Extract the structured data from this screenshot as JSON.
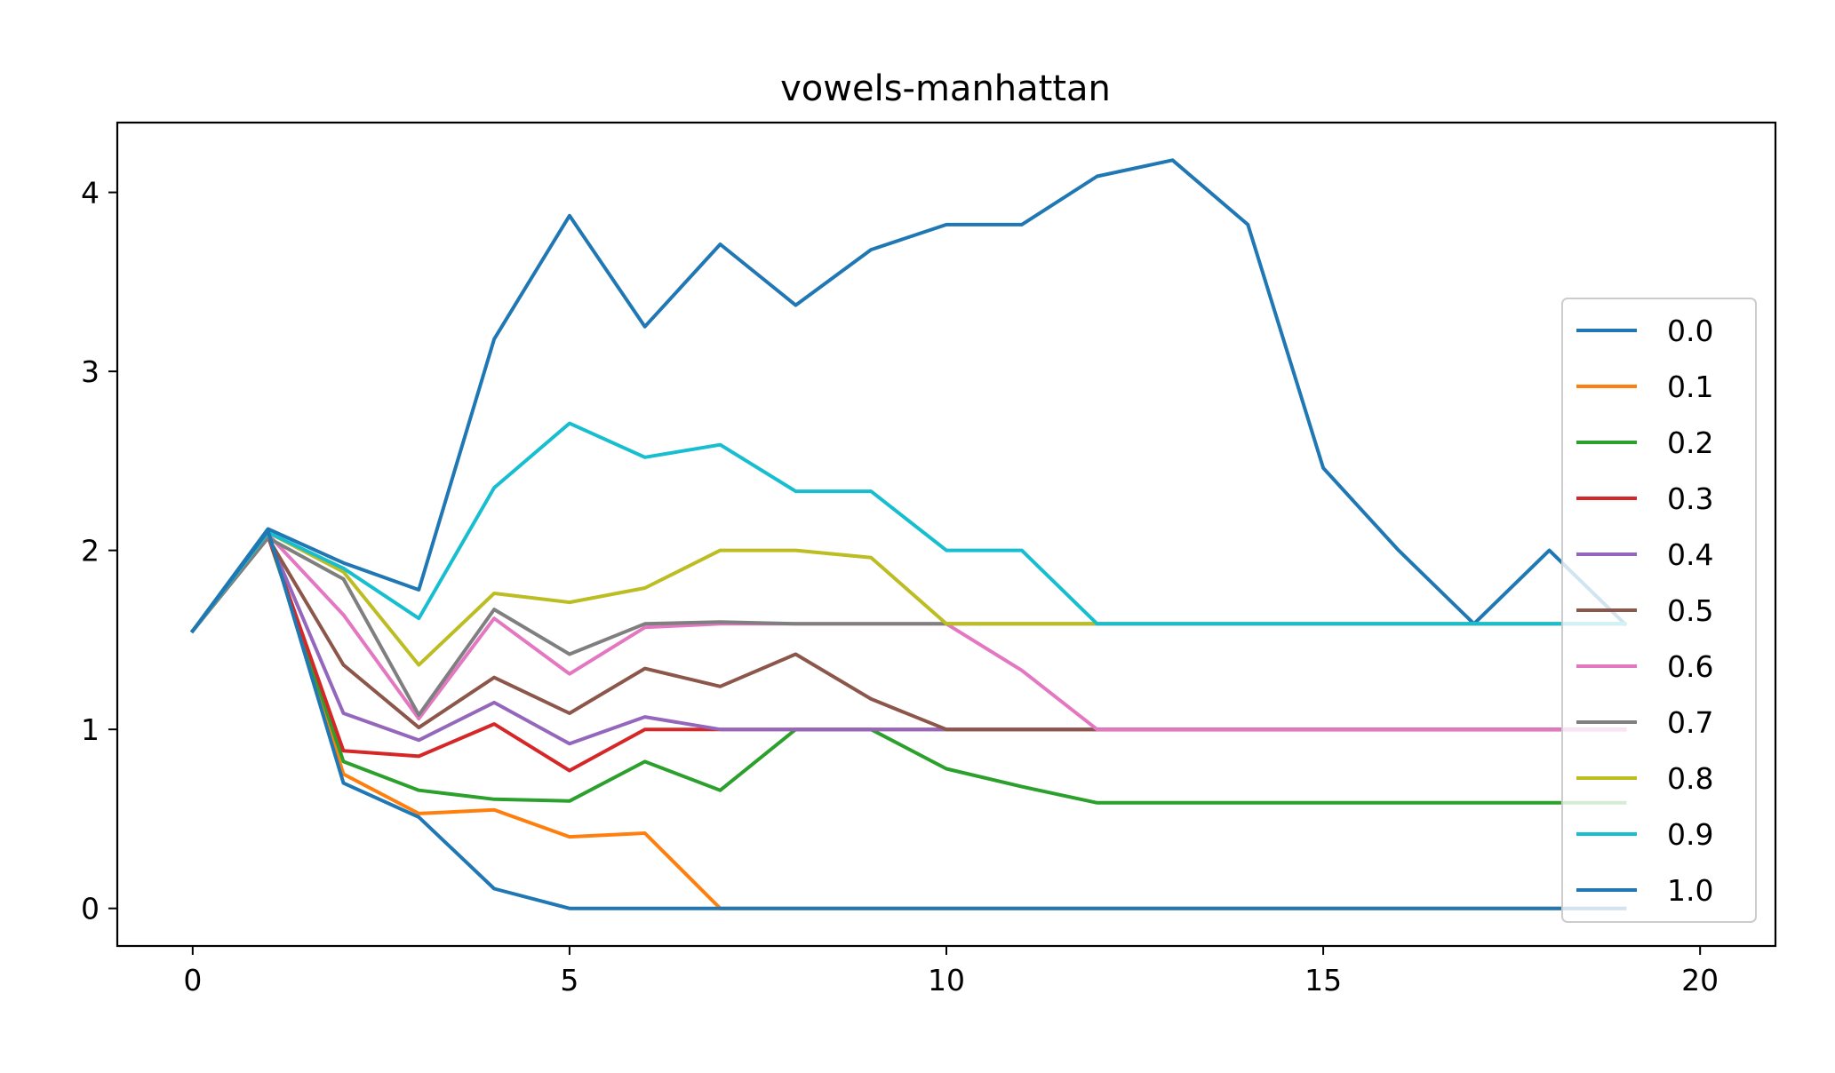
{
  "chart_data": {
    "type": "line",
    "title": "vowels-manhattan",
    "xlabel": "",
    "ylabel": "",
    "xlim": [
      -1,
      21
    ],
    "ylim": [
      -0.21,
      4.39
    ],
    "xticks": [
      0,
      5,
      10,
      15,
      20
    ],
    "yticks": [
      0,
      1,
      2,
      3,
      4
    ],
    "grid": false,
    "legend_position": "right",
    "x": [
      0,
      1,
      2,
      3,
      4,
      5,
      6,
      7,
      8,
      9,
      10,
      11,
      12,
      13,
      14,
      15,
      16,
      17,
      18,
      19
    ],
    "series": [
      {
        "name": "0.0",
        "color": "#1f77b4",
        "values": [
          1.55,
          2.12,
          1.93,
          1.78,
          3.18,
          3.87,
          3.25,
          3.71,
          3.37,
          3.68,
          3.82,
          3.82,
          4.09,
          4.18,
          3.82,
          2.46,
          2.0,
          1.59,
          2.0,
          1.59
        ]
      },
      {
        "name": "0.1",
        "color": "#ff7f0e",
        "values": [
          1.55,
          2.1,
          0.75,
          0.53,
          0.55,
          0.4,
          0.42,
          0.0,
          0.0,
          0.0,
          0.0,
          0.0,
          0.0,
          0.0,
          0.0,
          0.0,
          0.0,
          0.0,
          0.0,
          0.0
        ]
      },
      {
        "name": "0.2",
        "color": "#2ca02c",
        "values": [
          1.55,
          2.08,
          0.82,
          0.66,
          0.61,
          0.6,
          0.82,
          0.66,
          1.0,
          1.0,
          0.78,
          0.68,
          0.59,
          0.59,
          0.59,
          0.59,
          0.59,
          0.59,
          0.59,
          0.59
        ]
      },
      {
        "name": "0.3",
        "color": "#d62728",
        "values": [
          1.55,
          2.08,
          0.88,
          0.85,
          1.03,
          0.77,
          1.0,
          1.0,
          1.0,
          1.0,
          1.0,
          1.0,
          1.0,
          1.0,
          1.0,
          1.0,
          1.0,
          1.0,
          1.0,
          1.0
        ]
      },
      {
        "name": "0.4",
        "color": "#9467bd",
        "values": [
          1.55,
          2.08,
          1.09,
          0.94,
          1.15,
          0.92,
          1.07,
          1.0,
          1.0,
          1.0,
          1.0,
          1.0,
          1.0,
          1.0,
          1.0,
          1.0,
          1.0,
          1.0,
          1.0,
          1.0
        ]
      },
      {
        "name": "0.5",
        "color": "#8c564b",
        "values": [
          1.55,
          2.07,
          1.36,
          1.01,
          1.29,
          1.09,
          1.34,
          1.24,
          1.42,
          1.17,
          1.0,
          1.0,
          1.0,
          1.0,
          1.0,
          1.0,
          1.0,
          1.0,
          1.0,
          1.0
        ]
      },
      {
        "name": "0.6",
        "color": "#e377c2",
        "values": [
          1.55,
          2.09,
          1.64,
          1.06,
          1.62,
          1.31,
          1.57,
          1.59,
          1.59,
          1.59,
          1.59,
          1.33,
          1.0,
          1.0,
          1.0,
          1.0,
          1.0,
          1.0,
          1.0,
          1.0
        ]
      },
      {
        "name": "0.7",
        "color": "#7f7f7f",
        "values": [
          1.55,
          2.07,
          1.84,
          1.08,
          1.67,
          1.42,
          1.59,
          1.6,
          1.59,
          1.59,
          1.59,
          1.59,
          1.59,
          1.59,
          1.59,
          1.59,
          1.59,
          1.59,
          1.59,
          1.59
        ]
      },
      {
        "name": "0.8",
        "color": "#bcbd22",
        "values": [
          1.55,
          2.1,
          1.88,
          1.36,
          1.76,
          1.71,
          1.79,
          2.0,
          2.0,
          1.96,
          1.59,
          1.59,
          1.59,
          1.59,
          1.59,
          1.59,
          1.59,
          1.59,
          1.59,
          1.59
        ]
      },
      {
        "name": "0.9",
        "color": "#17becf",
        "values": [
          1.55,
          2.1,
          1.9,
          1.62,
          2.35,
          2.71,
          2.52,
          2.59,
          2.33,
          2.33,
          2.0,
          2.0,
          1.59,
          1.59,
          1.59,
          1.59,
          1.59,
          1.59,
          1.59,
          1.59
        ]
      },
      {
        "name": "1.0",
        "color": "#1f77b4",
        "values": [
          1.55,
          2.11,
          0.7,
          0.51,
          0.11,
          0.0,
          0.0,
          0.0,
          0.0,
          0.0,
          0.0,
          0.0,
          0.0,
          0.0,
          0.0,
          0.0,
          0.0,
          0.0,
          0.0,
          0.0
        ]
      }
    ]
  }
}
